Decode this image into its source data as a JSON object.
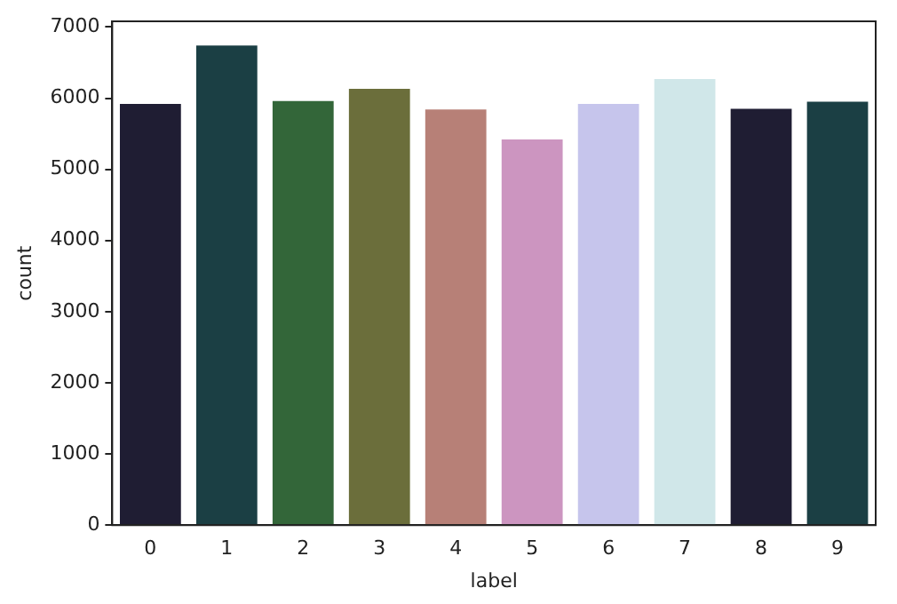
{
  "chart_data": {
    "type": "bar",
    "xlabel": "label",
    "ylabel": "count",
    "categories": [
      "0",
      "1",
      "2",
      "3",
      "4",
      "5",
      "6",
      "7",
      "8",
      "9"
    ],
    "values": [
      5920,
      6740,
      5960,
      6130,
      5840,
      5420,
      5920,
      6270,
      5850,
      5950
    ],
    "colors": [
      "#1f1d33",
      "#1b3f44",
      "#336639",
      "#6b6e3b",
      "#b78077",
      "#cc95c0",
      "#c6c5ec",
      "#d0e7e9",
      "#1f1d33",
      "#1b3f44"
    ],
    "ylim": [
      0,
      7080
    ],
    "yticks": [
      0,
      1000,
      2000,
      3000,
      4000,
      5000,
      6000,
      7000
    ]
  }
}
